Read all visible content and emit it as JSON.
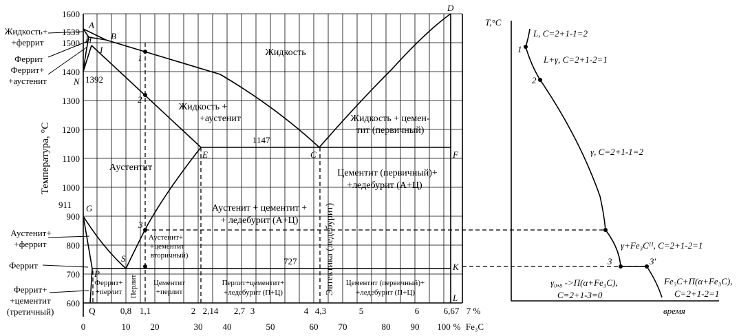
{
  "main_diagram": {
    "y_axis": {
      "label": "Температура, °С",
      "ticks": [
        "1600",
        "1500",
        "1400",
        "1300",
        "1200",
        "1100",
        "1000",
        "900",
        "800",
        "700",
        "600"
      ],
      "extra_ticks": [
        "1539",
        "911"
      ]
    },
    "x_axis_bottom": {
      "ticks": [
        "0",
        "10",
        "20",
        "30",
        "40",
        "50",
        "60",
        "70",
        "80",
        "90",
        "100"
      ],
      "unit": "%",
      "species": "Fe₃C"
    },
    "x_axis_carbon": {
      "labels": [
        "Q",
        "0,8",
        "1,1",
        "2",
        "2,14",
        "2,7",
        "3",
        "4",
        "4,3",
        "5",
        "6",
        "6,67",
        "7 %"
      ]
    },
    "points": [
      "A",
      "B",
      "H",
      "I",
      "N",
      "D",
      "E",
      "C",
      "F",
      "G",
      "S",
      "P",
      "K",
      "L"
    ],
    "temperatures": {
      "t1392": "1392",
      "t1147": "1147",
      "t727": "727"
    },
    "marks": [
      "1",
      "2",
      "3"
    ],
    "left_labels": {
      "liquid_ferrite_1": "Жидкость+",
      "liquid_ferrite_2": "+феррит",
      "ferrite": "Феррит",
      "ferrite_austenite_1": "Феррит+",
      "ferrite_austenite_2": "+аустенит",
      "austenite_ferrite_1": "Аустенит+",
      "austenite_ferrite_2": "+феррит",
      "ferrite2": "Феррит",
      "ferrite_cementite_1": "Феррит+",
      "ferrite_cementite_2": "+цементит",
      "ferrite_cementite_3": "(третичный)"
    },
    "regions": {
      "liquid": "Жидкость",
      "liquid_austenite_1": "Жидкость +",
      "liquid_austenite_2": "+аустенит",
      "liquid_cementite_1": "Жидкость + цемен-",
      "liquid_cementite_2": "тит (первичный)",
      "austenite": "Аустентит",
      "cem_led_1": "Цементит (первичный)+",
      "cem_led_2": "+ледебурит (А+Ц)",
      "aus_cem_led_1": "Аустенит + цементит +",
      "aus_cem_led_2": "+ ледебурит (А+Ц)",
      "aus_cem2_1": "Аустенит+",
      "aus_cem2_2": "+цементит",
      "aus_cem2_3": "вторичный)",
      "eutectic": "Эвтектика (ледебурит)",
      "ferrite_pearlite_1": "Феррит+",
      "ferrite_pearlite_2": "+перлит",
      "pearlite": "Перлит",
      "cem_pearlite_1": "Цементит",
      "cem_pearlite_2": "+перлит",
      "pearl_cem_led_1": "Перлит+цементит+",
      "pearl_cem_led_2": "+ледебурит (П+Ц)",
      "cem1_led_1": "Цементит (первичный)+",
      "cem1_led_2": "+ледебурит (П+Ц)"
    }
  },
  "cooling_curve": {
    "y_axis_label": "T,°C",
    "x_axis_label": "время",
    "points": [
      "1",
      "2",
      "3",
      "3'"
    ],
    "annotations": {
      "a1": "L, C=2+1-1=2",
      "a2": "L+γ, C=2+1-2=1",
      "a3": "γ, C=2+1-1=2",
      "a4": "γ+Fe₃Cᴵᴵ, C=2+1-2=1",
      "a5_1": "γ₀,₈ ->П(α+Fe₃C),",
      "a5_2": "C=2+1-3=0",
      "a6_1": "Fe₃C+П(α+Fe₃C),",
      "a6_2": "C=2+1-2=1"
    }
  }
}
